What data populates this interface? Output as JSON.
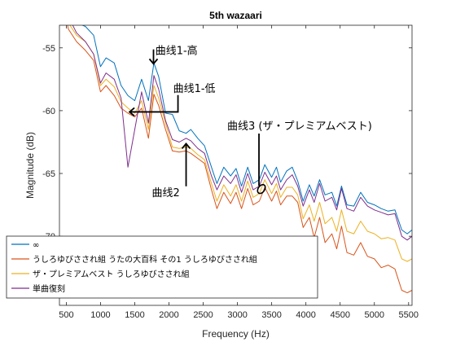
{
  "chart_data": {
    "type": "line",
    "title": "5th wazaari",
    "xlabel": "Frequency (Hz)",
    "ylabel": "Magnitude (dB)",
    "xlim": [
      400,
      5550
    ],
    "ylim": [
      -75.5,
      -53.2
    ],
    "xticks": [
      500,
      1000,
      1500,
      2000,
      2500,
      3000,
      3500,
      4000,
      4500,
      5000,
      5500
    ],
    "yticks": [
      -55,
      -60,
      -65,
      -70
    ],
    "grid": false,
    "legend_position": "bottom-left",
    "series": [
      {
        "name": "∞",
        "color": "#0072BD",
        "points": [
          [
            400,
            -48
          ],
          [
            530,
            -52
          ],
          [
            650,
            -53
          ],
          [
            780,
            -53.3
          ],
          [
            900,
            -54
          ],
          [
            1000,
            -56.5
          ],
          [
            1080,
            -55.8
          ],
          [
            1200,
            -56.2
          ],
          [
            1300,
            -58
          ],
          [
            1400,
            -58.8
          ],
          [
            1500,
            -59.2
          ],
          [
            1600,
            -57.5
          ],
          [
            1700,
            -59.2
          ],
          [
            1780,
            -56.2
          ],
          [
            1850,
            -57.3
          ],
          [
            1950,
            -60.2
          ],
          [
            2050,
            -60.3
          ],
          [
            2150,
            -61.6
          ],
          [
            2250,
            -61.8
          ],
          [
            2320,
            -61.5
          ],
          [
            2420,
            -62.2
          ],
          [
            2520,
            -62.8
          ],
          [
            2620,
            -64.5
          ],
          [
            2700,
            -65.8
          ],
          [
            2800,
            -64.5
          ],
          [
            2900,
            -65.2
          ],
          [
            2980,
            -64.6
          ],
          [
            3060,
            -66
          ],
          [
            3150,
            -64.5
          ],
          [
            3230,
            -65.8
          ],
          [
            3320,
            -65.5
          ],
          [
            3400,
            -64.3
          ],
          [
            3500,
            -65.3
          ],
          [
            3570,
            -64.5
          ],
          [
            3630,
            -65.7
          ],
          [
            3720,
            -64.8
          ],
          [
            3800,
            -64.5
          ],
          [
            3880,
            -65.6
          ],
          [
            3960,
            -67.2
          ],
          [
            4050,
            -65.9
          ],
          [
            4120,
            -66.8
          ],
          [
            4200,
            -65.5
          ],
          [
            4280,
            -66.7
          ],
          [
            4380,
            -66.5
          ],
          [
            4450,
            -67.6
          ],
          [
            4520,
            -66
          ],
          [
            4600,
            -67.5
          ],
          [
            4700,
            -67.6
          ],
          [
            4800,
            -66.5
          ],
          [
            4900,
            -67.3
          ],
          [
            5000,
            -67.5
          ],
          [
            5100,
            -67.8
          ],
          [
            5200,
            -68
          ],
          [
            5300,
            -67.9
          ],
          [
            5400,
            -69.5
          ],
          [
            5480,
            -69.8
          ],
          [
            5550,
            -69.5
          ]
        ]
      },
      {
        "name": "うしろゆびさされ組 うたの大百科 その1 うしろゆびさされ組",
        "color": "#D95319",
        "points": [
          [
            400,
            -50
          ],
          [
            530,
            -53.5
          ],
          [
            650,
            -54.5
          ],
          [
            780,
            -55.2
          ],
          [
            900,
            -56
          ],
          [
            1000,
            -58.5
          ],
          [
            1080,
            -58
          ],
          [
            1200,
            -58.8
          ],
          [
            1300,
            -59.8
          ],
          [
            1400,
            -60.2
          ],
          [
            1500,
            -60.5
          ],
          [
            1600,
            -59.8
          ],
          [
            1700,
            -62.2
          ],
          [
            1780,
            -58.7
          ],
          [
            1850,
            -59.6
          ],
          [
            1950,
            -61.5
          ],
          [
            2050,
            -63.2
          ],
          [
            2150,
            -63.3
          ],
          [
            2250,
            -63.2
          ],
          [
            2320,
            -63.4
          ],
          [
            2420,
            -63.8
          ],
          [
            2520,
            -64.2
          ],
          [
            2620,
            -66.3
          ],
          [
            2700,
            -67.8
          ],
          [
            2800,
            -66.5
          ],
          [
            2900,
            -67.4
          ],
          [
            2980,
            -66.5
          ],
          [
            3060,
            -67.8
          ],
          [
            3150,
            -66.2
          ],
          [
            3230,
            -67.5
          ],
          [
            3320,
            -67.2
          ],
          [
            3400,
            -66.1
          ],
          [
            3500,
            -67.2
          ],
          [
            3570,
            -66.4
          ],
          [
            3630,
            -67.5
          ],
          [
            3720,
            -66.8
          ],
          [
            3800,
            -66.8
          ],
          [
            3880,
            -67.3
          ],
          [
            3960,
            -69.3
          ],
          [
            4050,
            -68.5
          ],
          [
            4120,
            -70.1
          ],
          [
            4200,
            -68.5
          ],
          [
            4280,
            -70.5
          ],
          [
            4380,
            -69.8
          ],
          [
            4450,
            -71
          ],
          [
            4520,
            -69.2
          ],
          [
            4600,
            -71.3
          ],
          [
            4700,
            -71.5
          ],
          [
            4800,
            -70.5
          ],
          [
            4900,
            -71.6
          ],
          [
            5000,
            -71.8
          ],
          [
            5100,
            -72.5
          ],
          [
            5200,
            -72.3
          ],
          [
            5300,
            -72.6
          ],
          [
            5400,
            -74.3
          ],
          [
            5480,
            -74.5
          ],
          [
            5550,
            -74.3
          ]
        ]
      },
      {
        "name": "ザ・プレミアムベスト うしろゆびさされ組",
        "color": "#EDB120",
        "points": [
          [
            400,
            -49.5
          ],
          [
            530,
            -53
          ],
          [
            650,
            -54
          ],
          [
            780,
            -54.5
          ],
          [
            900,
            -55.5
          ],
          [
            1000,
            -58
          ],
          [
            1080,
            -57.5
          ],
          [
            1200,
            -58.1
          ],
          [
            1300,
            -59.3
          ],
          [
            1400,
            -59.8
          ],
          [
            1500,
            -60.2
          ],
          [
            1600,
            -59.2
          ],
          [
            1700,
            -61.5
          ],
          [
            1780,
            -58
          ],
          [
            1850,
            -59
          ],
          [
            1950,
            -61
          ],
          [
            2050,
            -62.9
          ],
          [
            2150,
            -63
          ],
          [
            2250,
            -62.9
          ],
          [
            2320,
            -63
          ],
          [
            2420,
            -63.5
          ],
          [
            2520,
            -63.9
          ],
          [
            2620,
            -65.8
          ],
          [
            2700,
            -67.2
          ],
          [
            2800,
            -65.9
          ],
          [
            2900,
            -66.8
          ],
          [
            2980,
            -65.9
          ],
          [
            3060,
            -67.2
          ],
          [
            3150,
            -65.6
          ],
          [
            3230,
            -66.9
          ],
          [
            3320,
            -66.6
          ],
          [
            3400,
            -65.5
          ],
          [
            3500,
            -66.6
          ],
          [
            3570,
            -65.8
          ],
          [
            3630,
            -66.9
          ],
          [
            3720,
            -66.1
          ],
          [
            3800,
            -66.1
          ],
          [
            3880,
            -66.7
          ],
          [
            3960,
            -68.6
          ],
          [
            4050,
            -67.5
          ],
          [
            4120,
            -68.8
          ],
          [
            4200,
            -67.3
          ],
          [
            4280,
            -69
          ],
          [
            4380,
            -68.5
          ],
          [
            4450,
            -69.6
          ],
          [
            4520,
            -67.9
          ],
          [
            4600,
            -69.6
          ],
          [
            4700,
            -69.8
          ],
          [
            4800,
            -68.8
          ],
          [
            4900,
            -69.6
          ],
          [
            5000,
            -69.8
          ],
          [
            5100,
            -70.2
          ],
          [
            5200,
            -70.1
          ],
          [
            5300,
            -70.3
          ],
          [
            5400,
            -71.8
          ],
          [
            5480,
            -72
          ],
          [
            5550,
            -71.8
          ]
        ]
      },
      {
        "name": "単曲復刻",
        "color": "#7E2F8E",
        "points": [
          [
            400,
            -49
          ],
          [
            530,
            -52.5
          ],
          [
            650,
            -53.8
          ],
          [
            780,
            -54.5
          ],
          [
            900,
            -55.5
          ],
          [
            1000,
            -57.8
          ],
          [
            1080,
            -57
          ],
          [
            1200,
            -57.5
          ],
          [
            1300,
            -59
          ],
          [
            1400,
            -64.5
          ],
          [
            1500,
            -61.5
          ],
          [
            1600,
            -58.5
          ],
          [
            1700,
            -61
          ],
          [
            1780,
            -57.2
          ],
          [
            1850,
            -58.3
          ],
          [
            1950,
            -60.8
          ],
          [
            2050,
            -62.3
          ],
          [
            2150,
            -62.5
          ],
          [
            2250,
            -62.2
          ],
          [
            2320,
            -62.4
          ],
          [
            2420,
            -63
          ],
          [
            2520,
            -63.4
          ],
          [
            2620,
            -65.2
          ],
          [
            2700,
            -66.3
          ],
          [
            2800,
            -65.2
          ],
          [
            2900,
            -65.8
          ],
          [
            2980,
            -65.1
          ],
          [
            3060,
            -66.5
          ],
          [
            3150,
            -65
          ],
          [
            3230,
            -66.3
          ],
          [
            3320,
            -66
          ],
          [
            3400,
            -64.9
          ],
          [
            3500,
            -65.9
          ],
          [
            3570,
            -65.2
          ],
          [
            3630,
            -66.3
          ],
          [
            3720,
            -65.5
          ],
          [
            3800,
            -65.1
          ],
          [
            3880,
            -66
          ],
          [
            3960,
            -67.6
          ],
          [
            4050,
            -66.3
          ],
          [
            4120,
            -67.3
          ],
          [
            4200,
            -65.8
          ],
          [
            4280,
            -67.2
          ],
          [
            4380,
            -66.9
          ],
          [
            4450,
            -67.9
          ],
          [
            4520,
            -66.2
          ],
          [
            4600,
            -67.8
          ],
          [
            4700,
            -68
          ],
          [
            4800,
            -66.9
          ],
          [
            4900,
            -67.6
          ],
          [
            5000,
            -67.9
          ],
          [
            5100,
            -68.1
          ],
          [
            5200,
            -68.3
          ],
          [
            5300,
            -68.2
          ],
          [
            5400,
            -70
          ],
          [
            5480,
            -70.3
          ],
          [
            5550,
            -70
          ]
        ]
      }
    ],
    "annotations": [
      {
        "text": "曲线1-高",
        "text_x": 1800,
        "text_y": -55.5,
        "arrow": "bent-down",
        "target": [
          1750,
          -56.4
        ]
      },
      {
        "text": "曲线1-低",
        "text_x": 2060,
        "text_y": -58.5,
        "arrow": "left",
        "target": [
          1400,
          -60.1
        ]
      },
      {
        "text": "曲线3 (ザ・プレミアムベスト)",
        "text_x": 2850,
        "text_y": -61.5,
        "arrow": "down",
        "target": [
          3350,
          -66.5
        ]
      },
      {
        "text": "曲线2",
        "text_x": 1750,
        "text_y": -66.8,
        "arrow": "up",
        "target": [
          2250,
          -62.5
        ]
      }
    ]
  }
}
